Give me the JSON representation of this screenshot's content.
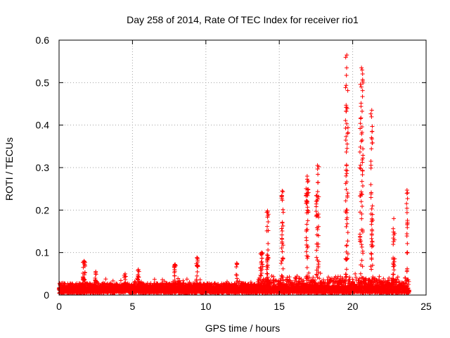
{
  "chart_data": {
    "type": "scatter",
    "title": "Day 258 of 2014, Rate Of TEC Index for receiver rio1",
    "xlabel": "GPS time / hours",
    "ylabel": "ROTI / TECUs",
    "xlim": [
      0,
      25
    ],
    "ylim": [
      0,
      0.6
    ],
    "xticks": [
      0,
      5,
      10,
      15,
      20,
      25
    ],
    "yticks": [
      0,
      0.1,
      0.2,
      0.3,
      0.4,
      0.5,
      0.6
    ],
    "xtick_labels": [
      "0",
      "5",
      "10",
      "15",
      "20",
      "25"
    ],
    "ytick_labels": [
      "0",
      "0.1",
      "0.2",
      "0.3",
      "0.4",
      "0.5",
      "0.6"
    ],
    "grid": true,
    "marker": "+",
    "color": "#ff0000",
    "series": [
      {
        "name": "rio1",
        "baseline_range": [
          0.0,
          0.8,
          0.028
        ],
        "x_end": 23.85,
        "bursts": [
          [
            1.7,
            0.08,
            0.15,
            24
          ],
          [
            2.5,
            0.055,
            0.1,
            14
          ],
          [
            4.5,
            0.05,
            0.15,
            10
          ],
          [
            5.4,
            0.06,
            0.1,
            12
          ],
          [
            7.9,
            0.072,
            0.12,
            16
          ],
          [
            9.4,
            0.088,
            0.12,
            18
          ],
          [
            12.1,
            0.075,
            0.08,
            8
          ],
          [
            13.8,
            0.1,
            0.2,
            22
          ],
          [
            14.2,
            0.198,
            0.12,
            30
          ],
          [
            15.2,
            0.245,
            0.15,
            34
          ],
          [
            16.9,
            0.28,
            0.18,
            42
          ],
          [
            17.6,
            0.305,
            0.18,
            42
          ],
          [
            19.6,
            0.565,
            0.18,
            60
          ],
          [
            20.6,
            0.535,
            0.22,
            66
          ],
          [
            21.3,
            0.435,
            0.15,
            46
          ],
          [
            22.8,
            0.18,
            0.15,
            22
          ],
          [
            23.7,
            0.247,
            0.08,
            22
          ]
        ]
      }
    ]
  }
}
